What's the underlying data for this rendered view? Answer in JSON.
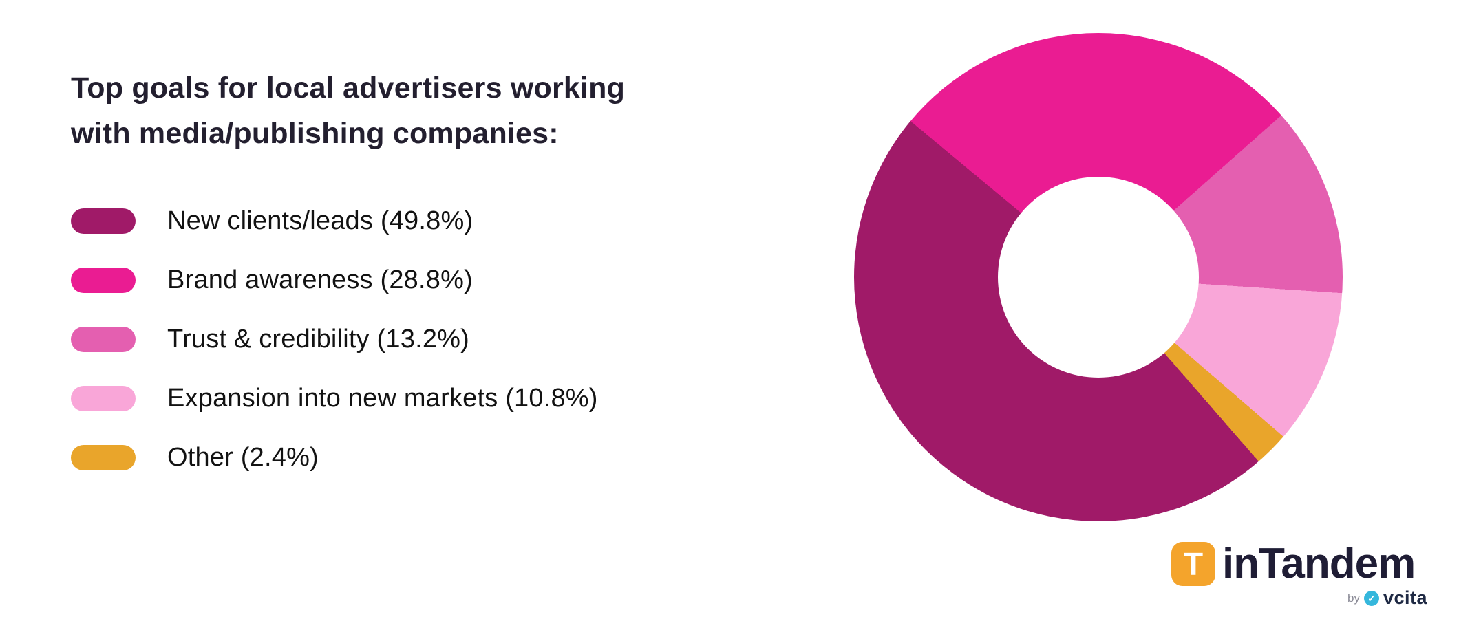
{
  "chart_data": {
    "type": "pie",
    "donut": true,
    "title": "Top goals for local advertisers working with media/publishing companies:",
    "title_lines": [
      "Top goals for local advertisers working",
      "with media/publishing companies:"
    ],
    "legend_position": "left",
    "rotation_deg": 139,
    "hole_ratio": 0.41,
    "segments": [
      {
        "label": "New clients/leads",
        "value": 49.8,
        "display": "New clients/leads (49.8%)",
        "color": "#a01a68"
      },
      {
        "label": "Brand awareness",
        "value": 28.8,
        "display": "Brand awareness (28.8%)",
        "color": "#ea1c92"
      },
      {
        "label": "Trust & credibility",
        "value": 13.2,
        "display": "Trust & credibility (13.2%)",
        "color": "#e45fb0"
      },
      {
        "label": "Expansion into new markets",
        "value": 10.8,
        "display": "Expansion into new markets (10.8%)",
        "color": "#f9a6d8"
      },
      {
        "label": "Other",
        "value": 2.4,
        "display": "Other (2.4%)",
        "color": "#e9a52b"
      }
    ]
  },
  "branding": {
    "logo_icon_letter": "T",
    "logo_text": "inTandem",
    "byline": "by",
    "byline_brand": "vcita",
    "colors": {
      "logo_icon_bg": "#f4a42c",
      "logo_text": "#1f1d35",
      "vcita_icon": "#35b7dc"
    }
  }
}
